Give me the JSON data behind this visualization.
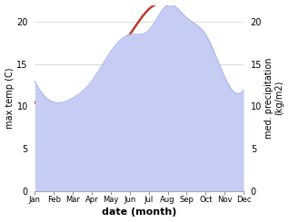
{
  "months": [
    "Jan",
    "Feb",
    "Mar",
    "Apr",
    "May",
    "Jun",
    "Jul",
    "Aug",
    "Sep",
    "Oct",
    "Nov",
    "Dec"
  ],
  "max_temp": [
    10.5,
    9.5,
    10.5,
    12.5,
    15.5,
    18.5,
    21.5,
    22.0,
    19.5,
    16.0,
    12.5,
    11.5
  ],
  "precipitation": [
    13.0,
    10.5,
    11.0,
    13.0,
    16.5,
    18.5,
    19.0,
    22.0,
    20.5,
    18.5,
    13.5,
    12.0
  ],
  "temp_color": "#c0392b",
  "precip_fill_color": "#c5cdf5",
  "precip_line_color": "#aab4e8",
  "ylabel_left": "max temp (C)",
  "ylabel_right": "med. precipitation\n(kg/m2)",
  "xlabel": "date (month)",
  "ylim": [
    0,
    22
  ],
  "yticks": [
    0,
    5,
    10,
    15,
    20
  ],
  "bg_color": "#ffffff"
}
